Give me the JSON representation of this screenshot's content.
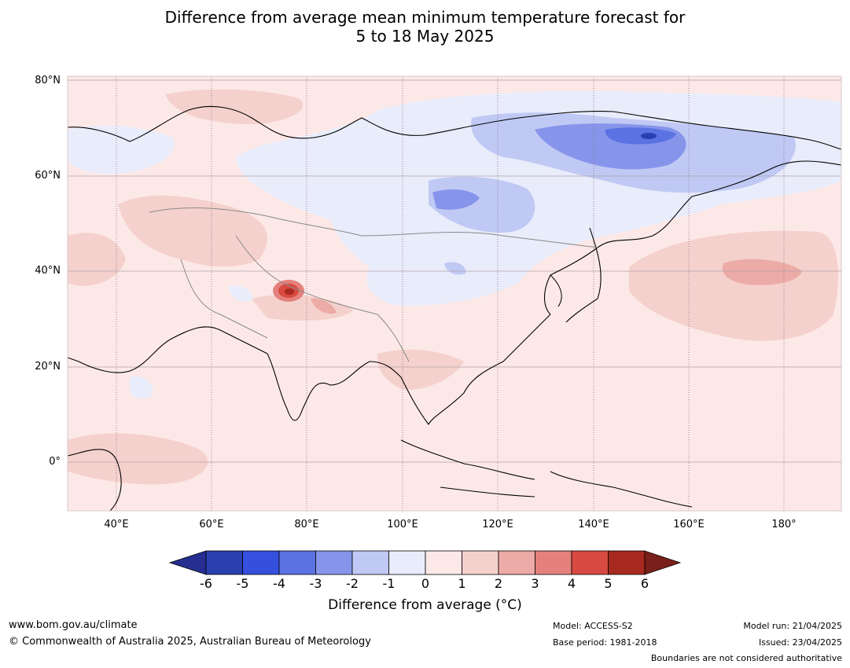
{
  "title_line1": "Difference from average mean minimum temperature forecast for",
  "title_line2": "5 to 18 May 2025",
  "map": {
    "lat_labels": [
      "80°N",
      "60°N",
      "40°N",
      "20°N",
      "0°"
    ],
    "lon_labels": [
      "40°E",
      "60°E",
      "80°E",
      "100°E",
      "120°E",
      "140°E",
      "160°E",
      "180°"
    ],
    "extent": {
      "lon": [
        30,
        192
      ],
      "lat": [
        -10,
        81
      ]
    }
  },
  "colorbar": {
    "ticks": [
      "-6",
      "-5",
      "-4",
      "-3",
      "-2",
      "-1",
      "0",
      "1",
      "2",
      "3",
      "4",
      "5",
      "6"
    ],
    "colors": [
      "#262f91",
      "#2a3fb0",
      "#3550de",
      "#5b72e3",
      "#8695ea",
      "#c0c9f4",
      "#e9ecfb",
      "#fce9e7",
      "#f5d1cd",
      "#ecaba6",
      "#e4817c",
      "#d84a41",
      "#a8291f",
      "#7a1f19"
    ],
    "label": "Difference from average ($^\\circ$C)",
    "label_display": "Difference from average (°C)"
  },
  "footer": {
    "website": "www.bom.gov.au/climate",
    "copyright": "© Commonwealth of Australia 2025, Australian Bureau of Meteorology",
    "model": "Model: ACCESS-S2",
    "base_period": "Base period: 1981-2018",
    "model_run": "Model run: 21/04/2025",
    "issued": "Issued: 23/04/2025",
    "disclaimer": "Boundaries are not considered authoritative"
  }
}
